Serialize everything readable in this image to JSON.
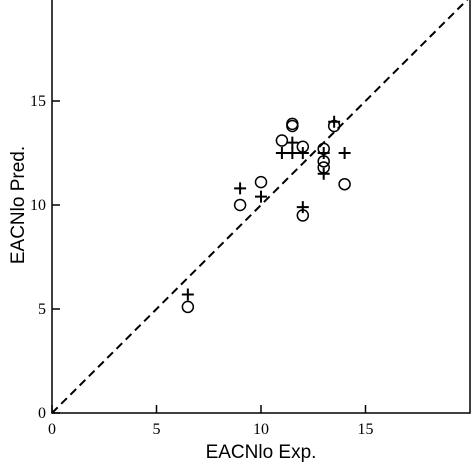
{
  "chart_data": {
    "type": "scatter",
    "title": "",
    "xlabel": "EACNlo Exp.",
    "ylabel": "EACNlo Pred.",
    "xlim": [
      0,
      20
    ],
    "ylim": [
      0,
      20
    ],
    "x_ticks": [
      0,
      5,
      10,
      15
    ],
    "y_ticks": [
      0,
      5,
      10,
      15
    ],
    "grid": false,
    "reference_line": {
      "style": "dashed",
      "from": [
        0,
        0
      ],
      "to": [
        20,
        20
      ]
    },
    "series": [
      {
        "marker": "circle",
        "points": [
          [
            6.5,
            5.1
          ],
          [
            9.0,
            10.0
          ],
          [
            10.0,
            11.1
          ],
          [
            11.0,
            13.1
          ],
          [
            11.5,
            13.8
          ],
          [
            11.5,
            13.9
          ],
          [
            12.0,
            12.8
          ],
          [
            12.0,
            9.5
          ],
          [
            13.0,
            12.7
          ],
          [
            13.0,
            12.1
          ],
          [
            13.0,
            11.8
          ],
          [
            13.5,
            13.8
          ],
          [
            14.0,
            11.0
          ]
        ]
      },
      {
        "marker": "plus",
        "points": [
          [
            6.5,
            5.7
          ],
          [
            9.0,
            10.8
          ],
          [
            10.0,
            10.4
          ],
          [
            11.0,
            12.5
          ],
          [
            11.5,
            12.5
          ],
          [
            11.5,
            13.0
          ],
          [
            12.0,
            12.5
          ],
          [
            12.0,
            9.9
          ],
          [
            13.0,
            12.5
          ],
          [
            13.0,
            11.5
          ],
          [
            13.5,
            14.0
          ],
          [
            14.0,
            12.5
          ]
        ]
      }
    ]
  }
}
